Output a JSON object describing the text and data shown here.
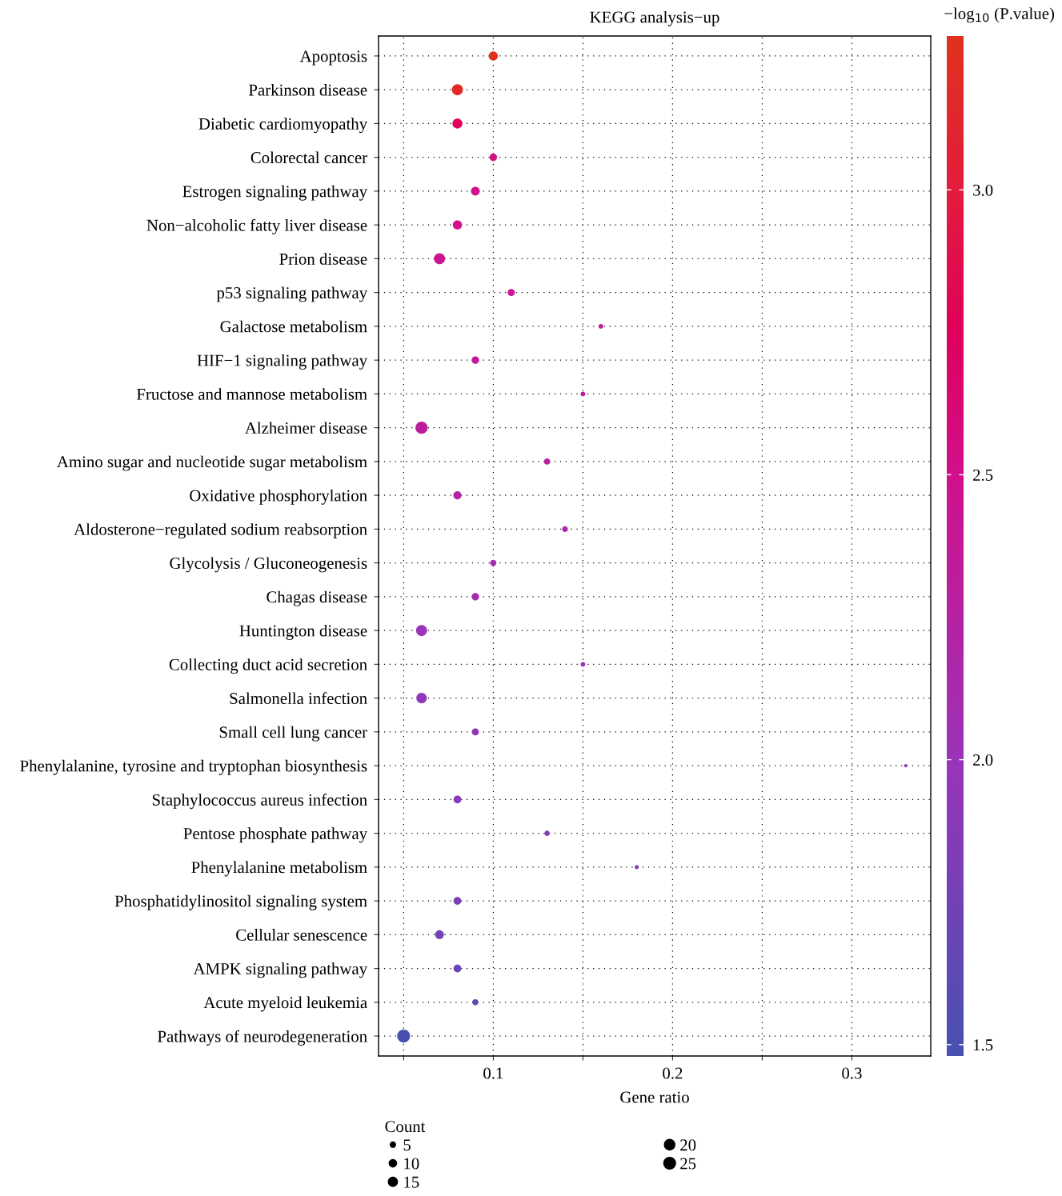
{
  "chart_data": {
    "type": "bubble",
    "orientation": "horizontal",
    "title": "KEGG analysis−up",
    "xlabel": "Gene ratio",
    "clabel": "−log$_{10}$ (P.value)",
    "legend_title": "Count",
    "marker": "circle",
    "grid": true,
    "categories": [
      "Apoptosis",
      "Parkinson disease",
      "Diabetic cardiomyopathy",
      "Colorectal cancer",
      "Estrogen signaling pathway",
      "Non−alcoholic fatty liver disease",
      "Prion disease",
      "p53 signaling pathway",
      "Galactose metabolism",
      "HIF−1 signaling pathway",
      "Fructose and mannose metabolism",
      "Alzheimer disease",
      "Amino sugar and nucleotide sugar metabolism",
      "Oxidative phosphorylation",
      "Aldosterone−regulated sodium reabsorption",
      "Glycolysis / Gluconeogenesis",
      "Chagas disease",
      "Huntington disease",
      "Collecting duct acid secretion",
      "Salmonella infection",
      "Small cell lung cancer",
      "Phenylalanine, tyrosine and tryptophan biosynthesis",
      "Staphylococcus aureus infection",
      "Pentose phosphate pathway",
      "Phenylalanine metabolism",
      "Phosphatidylinositol signaling system",
      "Cellular senescence",
      "AMPK signaling pathway",
      "Acute myeloid leukemia",
      "Pathways of neurodegeneration"
    ],
    "values": [
      0.1,
      0.08,
      0.08,
      0.1,
      0.09,
      0.08,
      0.07,
      0.11,
      0.16,
      0.09,
      0.15,
      0.06,
      0.13,
      0.08,
      0.14,
      0.1,
      0.09,
      0.06,
      0.15,
      0.06,
      0.09,
      0.33,
      0.08,
      0.13,
      0.18,
      0.08,
      0.07,
      0.08,
      0.09,
      0.05
    ],
    "sizes": [
      15,
      22,
      18,
      10,
      14,
      15,
      22,
      9,
      4,
      10,
      4,
      27,
      7,
      12,
      6,
      7,
      10,
      22,
      4,
      20,
      9,
      2,
      11,
      5,
      3,
      11,
      14,
      11,
      7,
      30
    ],
    "size_legend": [
      5,
      10,
      15,
      20,
      25
    ],
    "cvalues": [
      3.25,
      3.2,
      2.75,
      2.55,
      2.5,
      2.5,
      2.45,
      2.45,
      2.4,
      2.35,
      2.3,
      2.3,
      2.25,
      2.2,
      2.15,
      2.1,
      2.1,
      2.0,
      2.0,
      1.95,
      1.95,
      1.95,
      1.9,
      1.85,
      1.85,
      1.8,
      1.75,
      1.7,
      1.6,
      1.5
    ],
    "clim": [
      1.48,
      3.27
    ],
    "cticks": [
      {
        "value": 1.5,
        "label": "1.5"
      },
      {
        "value": 2,
        "label": "2.0"
      },
      {
        "value": 2.5,
        "label": "2.5"
      },
      {
        "value": 3,
        "label": "3.0"
      }
    ],
    "xlim": [
      0.036,
      0.344
    ],
    "xticks": [
      {
        "value": 0.05,
        "label": null
      },
      0.1,
      {
        "value": 0.15,
        "label": null
      },
      0.2,
      {
        "value": 0.25,
        "label": null
      },
      0.3
    ]
  }
}
